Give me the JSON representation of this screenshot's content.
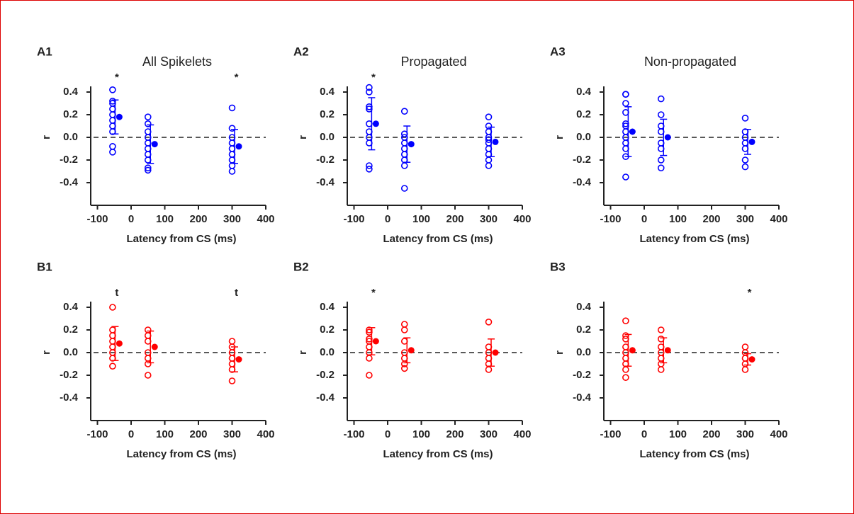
{
  "chart_data": [
    {
      "type": "scatter",
      "label": "A1",
      "title": "All Spikelets",
      "color": "#0000ff",
      "xlabel": "Latency from CS (ms)",
      "ylabel": "r",
      "xlim": [
        -120,
        400
      ],
      "ylim": [
        -0.6,
        0.45
      ],
      "xticks": [
        -100,
        0,
        100,
        200,
        300,
        400
      ],
      "yticks": [
        -0.4,
        -0.2,
        {
          "value": 0,
          "label": "0.0"
        },
        0.2,
        0.4
      ],
      "reference_line": 0,
      "groups": [
        {
          "x": -55,
          "values": [
            0.42,
            0.32,
            0.3,
            0.25,
            0.2,
            0.15,
            0.1,
            0.05,
            -0.08,
            -0.13
          ],
          "mean_x": -35,
          "mean": 0.18,
          "error": 0.15,
          "annotation": "*"
        },
        {
          "x": 50,
          "values": [
            0.18,
            0.12,
            0.05,
            0.0,
            -0.05,
            -0.1,
            -0.15,
            -0.2,
            -0.27,
            -0.29
          ],
          "mean_x": 70,
          "mean": -0.06,
          "error": 0.17
        },
        {
          "x": 300,
          "values": [
            0.26,
            0.08,
            0.0,
            -0.05,
            -0.1,
            -0.15,
            -0.2,
            -0.25,
            -0.3
          ],
          "mean_x": 320,
          "mean": -0.08,
          "error": 0.15,
          "annotation": "*"
        }
      ]
    },
    {
      "type": "scatter",
      "label": "A2",
      "title": "Propagated",
      "color": "#0000ff",
      "xlabel": "Latency from CS (ms)",
      "ylabel": "r",
      "xlim": [
        -120,
        400
      ],
      "ylim": [
        -0.6,
        0.45
      ],
      "xticks": [
        -100,
        0,
        100,
        200,
        300,
        400
      ],
      "yticks": [
        -0.4,
        -0.2,
        {
          "value": 0,
          "label": "0.0"
        },
        0.2,
        0.4
      ],
      "reference_line": 0,
      "groups": [
        {
          "x": -55,
          "values": [
            0.44,
            0.4,
            0.27,
            0.25,
            0.12,
            0.05,
            0.0,
            -0.05,
            -0.25,
            -0.28
          ],
          "mean_x": -35,
          "mean": 0.12,
          "error": 0.23,
          "annotation": "*"
        },
        {
          "x": 50,
          "values": [
            0.23,
            0.03,
            0.0,
            -0.05,
            -0.1,
            -0.15,
            -0.2,
            -0.25,
            -0.45
          ],
          "mean_x": 70,
          "mean": -0.06,
          "error": 0.16
        },
        {
          "x": 300,
          "values": [
            0.18,
            0.1,
            0.05,
            0.0,
            -0.02,
            -0.05,
            -0.1,
            -0.15,
            -0.2,
            -0.25
          ],
          "mean_x": 320,
          "mean": -0.04,
          "error": 0.13
        }
      ]
    },
    {
      "type": "scatter",
      "label": "A3",
      "title": "Non-propagated",
      "color": "#0000ff",
      "xlabel": "Latency from CS (ms)",
      "ylabel": "r",
      "xlim": [
        -120,
        400
      ],
      "ylim": [
        -0.6,
        0.45
      ],
      "xticks": [
        -100,
        0,
        100,
        200,
        300,
        400
      ],
      "yticks": [
        -0.4,
        -0.2,
        {
          "value": 0,
          "label": "0.0"
        },
        0.2,
        0.4
      ],
      "reference_line": 0,
      "groups": [
        {
          "x": -55,
          "values": [
            0.38,
            0.38,
            0.3,
            0.22,
            0.12,
            0.1,
            0.05,
            0.0,
            -0.05,
            -0.1,
            -0.17,
            -0.35
          ],
          "mean_x": -35,
          "mean": 0.05,
          "error": 0.22
        },
        {
          "x": 50,
          "values": [
            0.34,
            0.2,
            0.1,
            0.05,
            -0.05,
            -0.1,
            -0.2,
            -0.27
          ],
          "mean_x": 70,
          "mean": 0.0,
          "error": 0.16
        },
        {
          "x": 300,
          "values": [
            0.17,
            0.05,
            0.0,
            -0.05,
            -0.1,
            -0.2,
            -0.26
          ],
          "mean_x": 320,
          "mean": -0.04,
          "error": 0.11
        }
      ]
    },
    {
      "type": "scatter",
      "label": "B1",
      "color": "#ff0000",
      "xlabel": "Latency from CS (ms)",
      "ylabel": "r",
      "xlim": [
        -120,
        400
      ],
      "ylim": [
        -0.6,
        0.45
      ],
      "xticks": [
        -100,
        0,
        100,
        200,
        300,
        400
      ],
      "yticks": [
        -0.4,
        -0.2,
        {
          "value": 0,
          "label": "0.0"
        },
        0.2,
        0.4
      ],
      "reference_line": 0,
      "groups": [
        {
          "x": -55,
          "values": [
            0.4,
            0.2,
            0.15,
            0.1,
            0.05,
            0.0,
            -0.05,
            -0.12
          ],
          "mean_x": -35,
          "mean": 0.08,
          "error": 0.15,
          "annotation": "t"
        },
        {
          "x": 50,
          "values": [
            0.2,
            0.15,
            0.1,
            0.0,
            -0.05,
            -0.1,
            -0.2
          ],
          "mean_x": 70,
          "mean": 0.05,
          "error": 0.14
        },
        {
          "x": 300,
          "values": [
            0.1,
            0.05,
            0.0,
            -0.05,
            -0.1,
            -0.15,
            -0.25
          ],
          "mean_x": 320,
          "mean": -0.06,
          "error": 0.11,
          "annotation": "t"
        }
      ]
    },
    {
      "type": "scatter",
      "label": "B2",
      "color": "#ff0000",
      "xlabel": "Latency from CS (ms)",
      "ylabel": "r",
      "xlim": [
        -120,
        400
      ],
      "ylim": [
        -0.6,
        0.45
      ],
      "xticks": [
        -100,
        0,
        100,
        200,
        300,
        400
      ],
      "yticks": [
        -0.4,
        -0.2,
        {
          "value": 0,
          "label": "0.0"
        },
        0.2,
        0.4
      ],
      "reference_line": 0,
      "groups": [
        {
          "x": -55,
          "values": [
            0.2,
            0.18,
            0.12,
            0.1,
            0.05,
            0.0,
            -0.05,
            -0.2
          ],
          "mean_x": -35,
          "mean": 0.1,
          "error": 0.12,
          "annotation": "*"
        },
        {
          "x": 50,
          "values": [
            0.25,
            0.2,
            0.1,
            0.0,
            -0.05,
            -0.1,
            -0.14
          ],
          "mean_x": 70,
          "mean": 0.02,
          "error": 0.11
        },
        {
          "x": 300,
          "values": [
            0.27,
            0.05,
            0.0,
            -0.05,
            -0.1,
            -0.15
          ],
          "mean_x": 320,
          "mean": 0.0,
          "error": 0.12
        }
      ]
    },
    {
      "type": "scatter",
      "label": "B3",
      "color": "#ff0000",
      "xlabel": "Latency from CS (ms)",
      "ylabel": "r",
      "xlim": [
        -120,
        400
      ],
      "ylim": [
        -0.6,
        0.45
      ],
      "xticks": [
        -100,
        0,
        100,
        200,
        300,
        400
      ],
      "yticks": [
        -0.4,
        -0.2,
        {
          "value": 0,
          "label": "0.0"
        },
        0.2,
        0.4
      ],
      "reference_line": 0,
      "groups": [
        {
          "x": -55,
          "values": [
            0.28,
            0.15,
            0.12,
            0.05,
            0.0,
            -0.05,
            -0.1,
            -0.15,
            -0.22
          ],
          "mean_x": -35,
          "mean": 0.02,
          "error": 0.14
        },
        {
          "x": 50,
          "values": [
            0.2,
            0.12,
            0.05,
            0.0,
            -0.05,
            -0.1,
            -0.15
          ],
          "mean_x": 70,
          "mean": 0.02,
          "error": 0.11
        },
        {
          "x": 300,
          "values": [
            0.05,
            0.0,
            -0.05,
            -0.1,
            -0.15
          ],
          "mean_x": 320,
          "mean": -0.06,
          "error": 0.05,
          "annotation": "*"
        }
      ]
    }
  ]
}
